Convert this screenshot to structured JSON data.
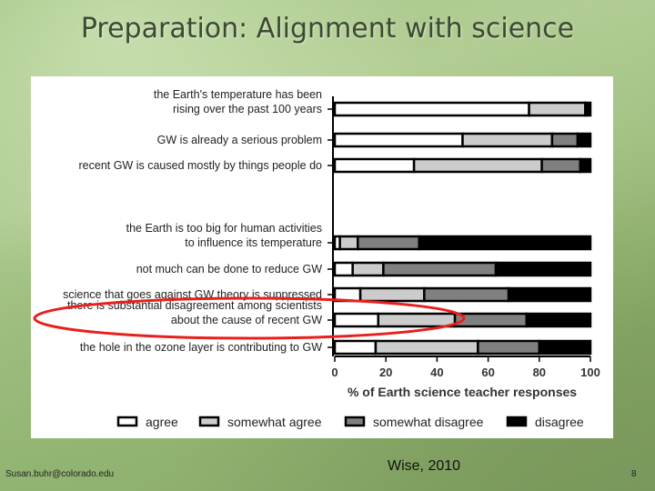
{
  "slide": {
    "title": "Preparation:  Alignment with science",
    "footer_email": "Susan.buhr@colorado.edu",
    "citation": "Wise, 2010",
    "page_number": "8"
  },
  "chart_data": {
    "type": "bar",
    "orientation": "horizontal",
    "stacked": true,
    "title": "",
    "xlabel": "% of Earth science teacher responses",
    "ylabel": "",
    "xlim": [
      0,
      100
    ],
    "x_ticks": [
      "0",
      "20",
      "40",
      "60",
      "80",
      "100"
    ],
    "categories": [
      [
        "the Earth's temperature has been",
        "rising over the past 100 years"
      ],
      [
        "GW is already a serious problem"
      ],
      [
        "recent GW is caused mostly by things people do"
      ],
      [
        "the Earth is too big for human activities",
        "to influence its temperature"
      ],
      [
        "not much can be done to reduce GW"
      ],
      [
        "science that goes against GW theory is suppressed"
      ],
      [
        "there is substantial disagreement among scientists",
        "about the cause of recent GW"
      ],
      [
        "the hole in the ozone layer is contributing to GW"
      ]
    ],
    "group_gap_after_index": 2,
    "series": [
      {
        "name": "agree",
        "color": "#ffffff",
        "values": [
          76,
          50,
          31,
          2,
          7,
          10,
          17,
          16
        ]
      },
      {
        "name": "somewhat agree",
        "color": "#cccccc",
        "values": [
          22,
          35,
          50,
          7,
          12,
          25,
          30,
          40
        ]
      },
      {
        "name": "somewhat disagree",
        "color": "#808080",
        "values": [
          0,
          10,
          15,
          24,
          44,
          33,
          28,
          24
        ]
      },
      {
        "name": "disagree",
        "color": "#000000",
        "values": [
          2,
          5,
          4,
          67,
          37,
          32,
          25,
          20
        ]
      }
    ],
    "annotation": {
      "type": "ellipse",
      "color": "#e8201c",
      "target_category_index": 6
    }
  }
}
